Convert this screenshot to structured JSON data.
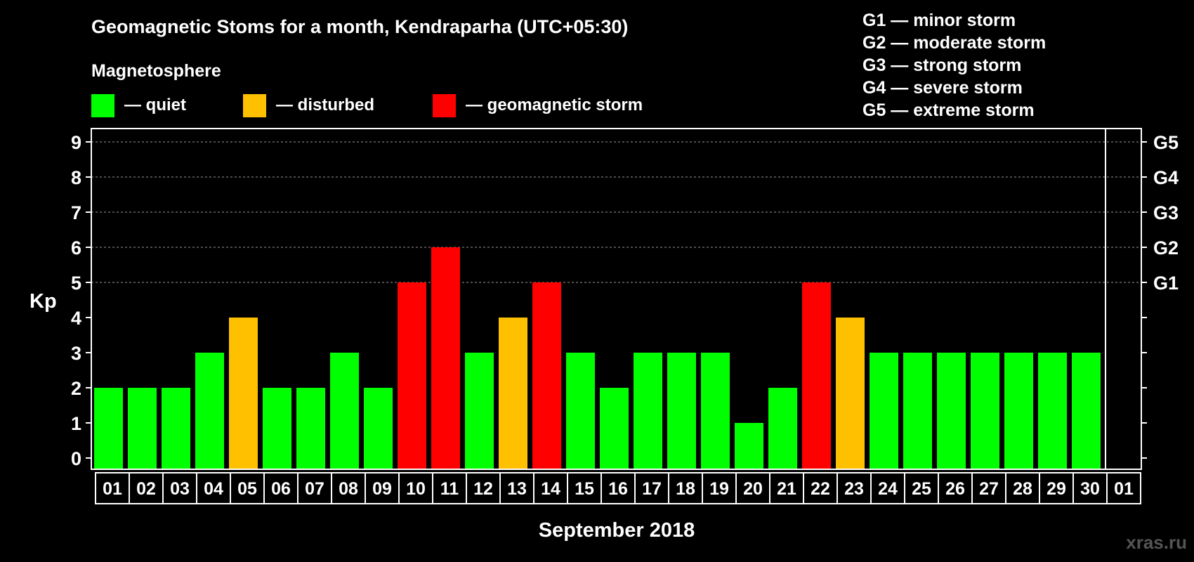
{
  "title": "Geomagnetic Stoms for a month, Kendraparha (UTC+05:30)",
  "legend": {
    "heading": "Magnetosphere",
    "items": [
      {
        "label": "— quiet",
        "color": "#00ff00"
      },
      {
        "label": "— disturbed",
        "color": "#ffc000"
      },
      {
        "label": "— geomagnetic storm",
        "color": "#ff0000"
      }
    ]
  },
  "storm_scale": [
    "G1 — minor storm",
    "G2 — moderate storm",
    "G3 — strong storm",
    "G4 — severe storm",
    "G5 — extreme storm"
  ],
  "watermark": "xras.ru",
  "chart_data": {
    "type": "bar",
    "title": "Geomagnetic Stoms for a month, Kendraparha (UTC+05:30)",
    "xlabel": "September 2018",
    "ylabel": "Kp",
    "ylim": [
      0,
      9
    ],
    "yticks": [
      "0",
      "1",
      "2",
      "3",
      "4",
      "5",
      "6",
      "7",
      "8",
      "9"
    ],
    "right_axis_labels": [
      {
        "kp": 5,
        "label": "G1"
      },
      {
        "kp": 6,
        "label": "G2"
      },
      {
        "kp": 7,
        "label": "G3"
      },
      {
        "kp": 8,
        "label": "G4"
      },
      {
        "kp": 9,
        "label": "G5"
      }
    ],
    "grid": true,
    "categories": [
      "01",
      "02",
      "03",
      "04",
      "05",
      "06",
      "07",
      "08",
      "09",
      "10",
      "11",
      "12",
      "13",
      "14",
      "15",
      "16",
      "17",
      "18",
      "19",
      "20",
      "21",
      "22",
      "23",
      "24",
      "25",
      "26",
      "27",
      "28",
      "29",
      "30",
      "01"
    ],
    "values": [
      2,
      2,
      2,
      3,
      4,
      2,
      2,
      3,
      2,
      5,
      6,
      3,
      4,
      5,
      3,
      2,
      3,
      3,
      3,
      1,
      2,
      5,
      4,
      3,
      3,
      3,
      3,
      3,
      3,
      3,
      null
    ],
    "levels": [
      "quiet",
      "quiet",
      "quiet",
      "quiet",
      "disturbed",
      "quiet",
      "quiet",
      "quiet",
      "quiet",
      "storm",
      "storm",
      "quiet",
      "disturbed",
      "storm",
      "quiet",
      "quiet",
      "quiet",
      "quiet",
      "quiet",
      "quiet",
      "quiet",
      "storm",
      "disturbed",
      "quiet",
      "quiet",
      "quiet",
      "quiet",
      "quiet",
      "quiet",
      "quiet",
      null
    ],
    "colors": {
      "quiet": "#00ff00",
      "disturbed": "#ffc000",
      "storm": "#ff0000"
    }
  }
}
